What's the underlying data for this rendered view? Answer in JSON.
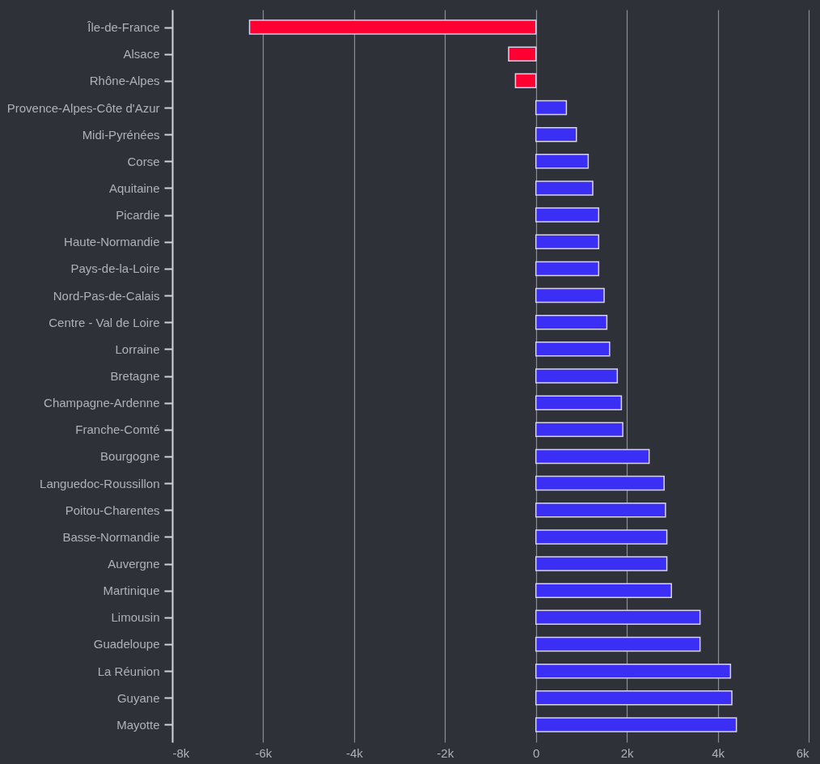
{
  "chart_data": {
    "type": "bar",
    "orientation": "horizontal",
    "categories": [
      "Île-de-France",
      "Alsace",
      "Rhône-Alpes",
      "Provence-Alpes-Côte d'Azur",
      "Midi-Pyrénées",
      "Corse",
      "Aquitaine",
      "Picardie",
      "Haute-Normandie",
      "Pays-de-la-Loire",
      "Nord-Pas-de-Calais",
      "Centre - Val de Loire",
      "Lorraine",
      "Bretagne",
      "Champagne-Ardenne",
      "Franche-Comté",
      "Bourgogne",
      "Languedoc-Roussillon",
      "Poitou-Charentes",
      "Basse-Normandie",
      "Auvergne",
      "Martinique",
      "Limousin",
      "Guadeloupe",
      "La Réunion",
      "Guyane",
      "Mayotte"
    ],
    "values": [
      -6300,
      -600,
      -450,
      670,
      890,
      1150,
      1250,
      1380,
      1380,
      1380,
      1500,
      1560,
      1620,
      1790,
      1880,
      1910,
      2490,
      2820,
      2850,
      2880,
      2880,
      2980,
      3610,
      3610,
      4280,
      4310,
      4410
    ],
    "colors": [
      "#ff0033",
      "#ff0033",
      "#ff0033",
      "#3b2ef5",
      "#3b2ef5",
      "#3b2ef5",
      "#3b2ef5",
      "#3b2ef5",
      "#3b2ef5",
      "#3b2ef5",
      "#3b2ef5",
      "#3b2ef5",
      "#3b2ef5",
      "#3b2ef5",
      "#3b2ef5",
      "#3b2ef5",
      "#3b2ef5",
      "#3b2ef5",
      "#3b2ef5",
      "#3b2ef5",
      "#3b2ef5",
      "#3b2ef5",
      "#3b2ef5",
      "#3b2ef5",
      "#3b2ef5",
      "#3b2ef5",
      "#3b2ef5"
    ],
    "xlim": [
      -8000,
      6000
    ],
    "xticks": [
      {
        "value": -8000,
        "label": "-8k"
      },
      {
        "value": -6000,
        "label": "-6k"
      },
      {
        "value": -4000,
        "label": "-4k"
      },
      {
        "value": -2000,
        "label": "-2k"
      },
      0,
      {
        "value": 2000,
        "label": "2k"
      },
      {
        "value": 4000,
        "label": "4k"
      },
      {
        "value": 6000,
        "label": "6k"
      }
    ],
    "grid": "x"
  }
}
